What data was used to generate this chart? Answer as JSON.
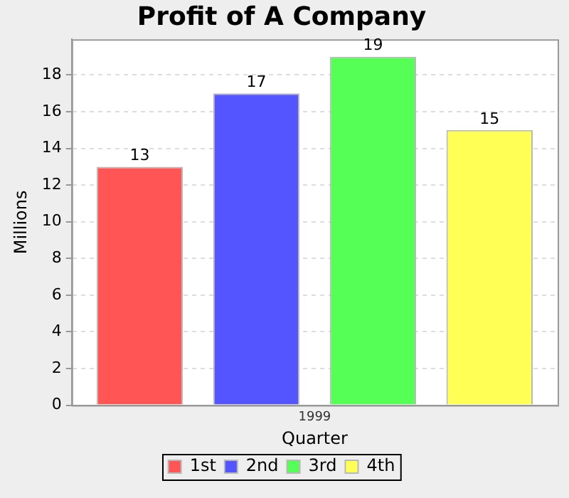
{
  "chart_data": {
    "type": "bar",
    "title": "Profit of A Company",
    "xlabel": "Quarter",
    "ylabel": "Millions",
    "categories": [
      "1999"
    ],
    "series": [
      {
        "name": "1st",
        "color": "#ff5555",
        "values": [
          13
        ]
      },
      {
        "name": "2nd",
        "color": "#5555ff",
        "values": [
          17
        ]
      },
      {
        "name": "3rd",
        "color": "#55ff55",
        "values": [
          19
        ]
      },
      {
        "name": "4th",
        "color": "#ffff55",
        "values": [
          15
        ]
      }
    ],
    "ylim": [
      0,
      19.95
    ],
    "yticks": [
      0,
      2,
      4,
      6,
      8,
      10,
      12,
      14,
      16,
      18
    ],
    "grid": "y",
    "legend": "bottom",
    "data_labels": true
  }
}
